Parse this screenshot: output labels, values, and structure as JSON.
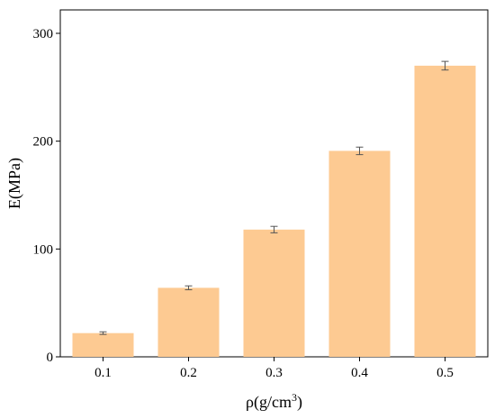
{
  "chart_data": {
    "type": "bar",
    "categories": [
      "0.1",
      "0.2",
      "0.3",
      "0.4",
      "0.5"
    ],
    "values": [
      22,
      64,
      118,
      191,
      270
    ],
    "errors": [
      1.2,
      1.8,
      3,
      3.5,
      4
    ],
    "xlabel_main": "ρ(g/cm",
    "xlabel_sup": "3",
    "xlabel_close": ")",
    "ylabel": "E(MPa)",
    "ylim": [
      0,
      300
    ],
    "yticks": [
      0,
      100,
      200,
      300
    ],
    "grid": false,
    "bar_color": "#FDCA92",
    "error_color": "#555555"
  }
}
